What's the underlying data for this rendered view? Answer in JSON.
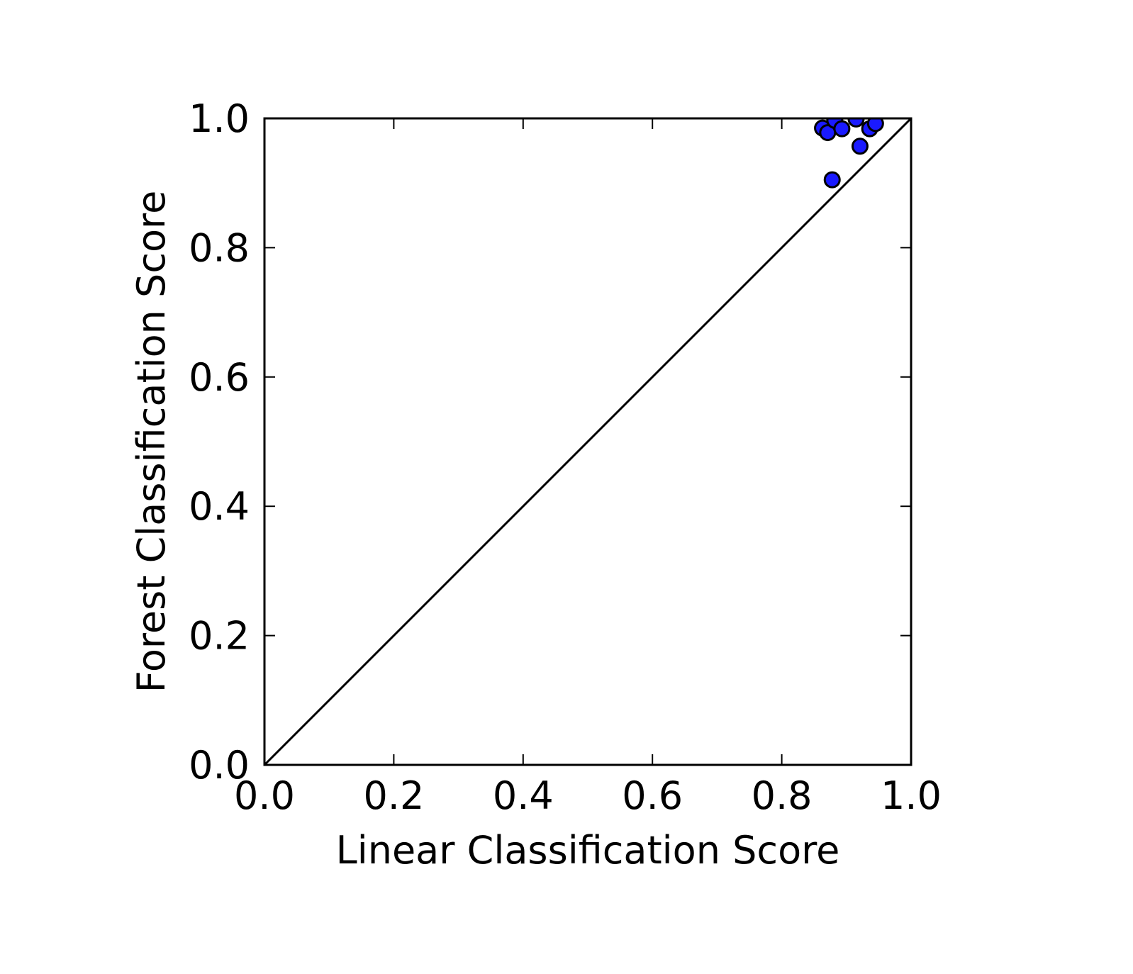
{
  "chart_data": {
    "type": "scatter",
    "title": "",
    "xlabel": "Linear Classification Score",
    "ylabel": "Forest Classification Score",
    "xlim": [
      0.0,
      1.0
    ],
    "ylim": [
      0.0,
      1.0
    ],
    "xticks": [
      "0.0",
      "0.2",
      "0.4",
      "0.6",
      "0.8",
      "1.0"
    ],
    "yticks": [
      "0.0",
      "0.2",
      "0.4",
      "0.6",
      "0.8",
      "1.0"
    ],
    "grid": false,
    "legend": "none",
    "reference_line": {
      "from": [
        0.0,
        0.0
      ],
      "to": [
        1.0,
        1.0
      ]
    },
    "marker_color": "#1a1aff",
    "marker_edge_color": "#000000",
    "points": [
      {
        "x": 0.863,
        "y": 0.985
      },
      {
        "x": 0.871,
        "y": 0.978
      },
      {
        "x": 0.878,
        "y": 0.905
      },
      {
        "x": 0.882,
        "y": 0.997
      },
      {
        "x": 0.893,
        "y": 0.984
      },
      {
        "x": 0.915,
        "y": 0.999
      },
      {
        "x": 0.921,
        "y": 0.957
      },
      {
        "x": 0.936,
        "y": 0.984
      },
      {
        "x": 0.945,
        "y": 0.992
      }
    ]
  }
}
